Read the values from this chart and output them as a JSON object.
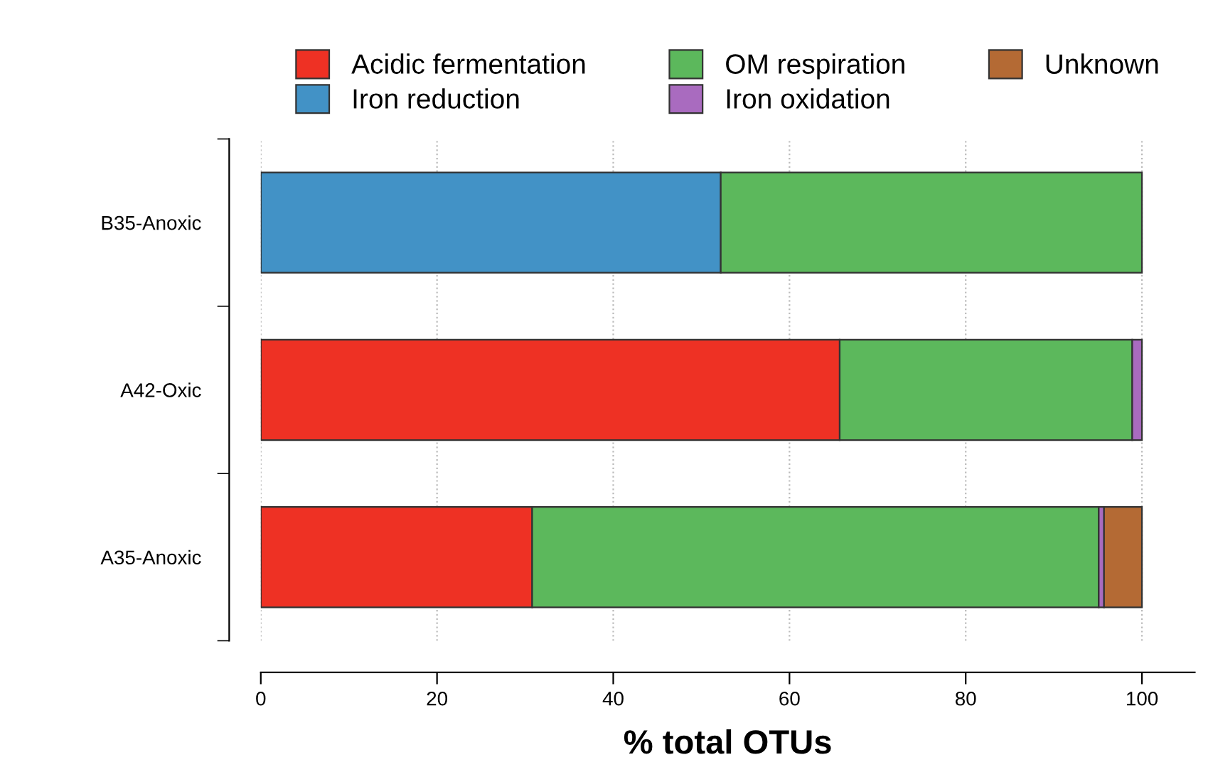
{
  "chart_data": {
    "type": "bar",
    "orientation": "horizontal",
    "stacked": true,
    "categories": [
      "B35-Anoxic",
      "A42-Oxic",
      "A35-Anoxic"
    ],
    "series": [
      {
        "name": "Acidic fermentation",
        "color": "#ee3124",
        "values": [
          null,
          65.7,
          30.8
        ]
      },
      {
        "name": "Iron reduction",
        "color": "#4292c6",
        "values": [
          52.2,
          null,
          null
        ]
      },
      {
        "name": "OM respiration",
        "color": "#5cb85c",
        "values": [
          47.8,
          33.2,
          64.3
        ]
      },
      {
        "name": "Iron oxidation",
        "color": "#a96bbf",
        "values": [
          null,
          1.1,
          0.6
        ]
      },
      {
        "name": "Unknown",
        "color": "#b46a34",
        "values": [
          null,
          null,
          4.3
        ]
      }
    ],
    "xlabel": "% total OTUs",
    "xlim": [
      0,
      106
    ],
    "xticks": [
      0,
      20,
      40,
      60,
      80,
      100
    ],
    "grid": "x",
    "legend": "top"
  }
}
